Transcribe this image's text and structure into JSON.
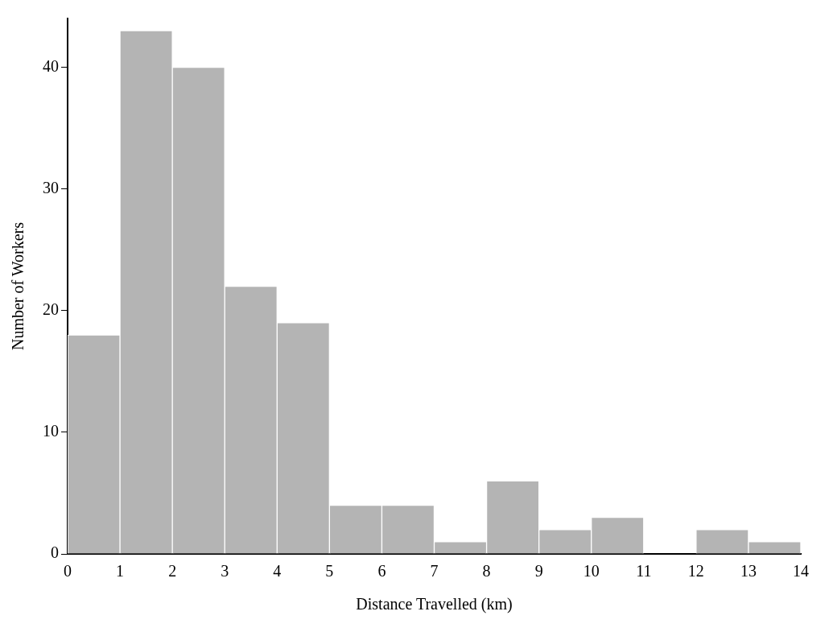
{
  "chart_data": {
    "type": "histogram",
    "xlabel": "Distance Travelled (km)",
    "ylabel": "Number of Workers",
    "bins": [
      0,
      1,
      2,
      3,
      4,
      5,
      6,
      7,
      8,
      9,
      10,
      11,
      12,
      13,
      14
    ],
    "values": [
      18,
      43,
      40,
      22,
      19,
      4,
      4,
      1,
      6,
      2,
      3,
      0,
      2,
      1
    ],
    "color": "#b4b4b4",
    "xlim": [
      0,
      14
    ],
    "xticks": [
      0,
      1,
      2,
      3,
      4,
      5,
      6,
      7,
      8,
      9,
      10,
      11,
      12,
      13,
      14
    ],
    "ylim": [
      0,
      44
    ],
    "yticks": [
      0,
      10,
      20,
      30,
      40
    ],
    "grid": false,
    "legend": false
  }
}
